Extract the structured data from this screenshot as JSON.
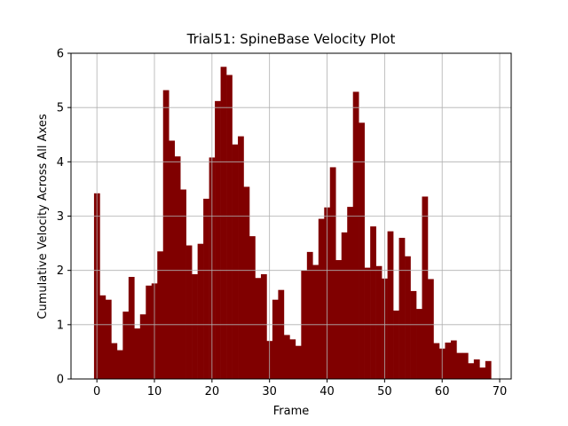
{
  "chart_data": {
    "type": "bar",
    "title": "Trial51: SpineBase Velocity Plot",
    "xlabel": "Frame",
    "ylabel": "Cumulative Velocity Across All Axes",
    "xlim": [
      -4.5,
      72
    ],
    "ylim": [
      0,
      6
    ],
    "xticks": [
      0,
      10,
      20,
      30,
      40,
      50,
      60,
      70
    ],
    "yticks": [
      0,
      1,
      2,
      3,
      4,
      5,
      6
    ],
    "grid": true,
    "bar_color": "#800000",
    "bar_width": 1,
    "x": [
      0,
      1,
      2,
      3,
      4,
      5,
      6,
      7,
      8,
      9,
      10,
      11,
      12,
      13,
      14,
      15,
      16,
      17,
      18,
      19,
      20,
      21,
      22,
      23,
      24,
      25,
      26,
      27,
      28,
      29,
      30,
      31,
      32,
      33,
      34,
      35,
      36,
      37,
      38,
      39,
      40,
      41,
      42,
      43,
      44,
      45,
      46,
      47,
      48,
      49,
      50,
      51,
      52,
      53,
      54,
      55,
      56,
      57,
      58,
      59,
      60,
      61,
      62,
      63,
      64,
      65,
      66,
      67,
      68
    ],
    "values": [
      3.42,
      1.54,
      1.46,
      0.66,
      0.53,
      1.24,
      1.88,
      0.93,
      1.19,
      1.72,
      1.76,
      2.35,
      5.32,
      4.39,
      4.1,
      3.49,
      2.46,
      1.93,
      2.49,
      3.32,
      4.08,
      5.12,
      5.75,
      5.6,
      4.32,
      4.47,
      3.54,
      2.63,
      1.86,
      1.93,
      0.7,
      1.46,
      1.64,
      0.81,
      0.73,
      0.61,
      2.0,
      2.34,
      2.1,
      2.95,
      3.16,
      3.9,
      2.19,
      2.7,
      3.17,
      5.29,
      4.72,
      2.05,
      2.81,
      2.08,
      1.85,
      2.72,
      1.26,
      2.6,
      2.26,
      1.62,
      1.29,
      3.36,
      1.84,
      0.66,
      0.56,
      0.67,
      0.71,
      0.48,
      0.48,
      0.29,
      0.36,
      0.21,
      0.33
    ]
  }
}
